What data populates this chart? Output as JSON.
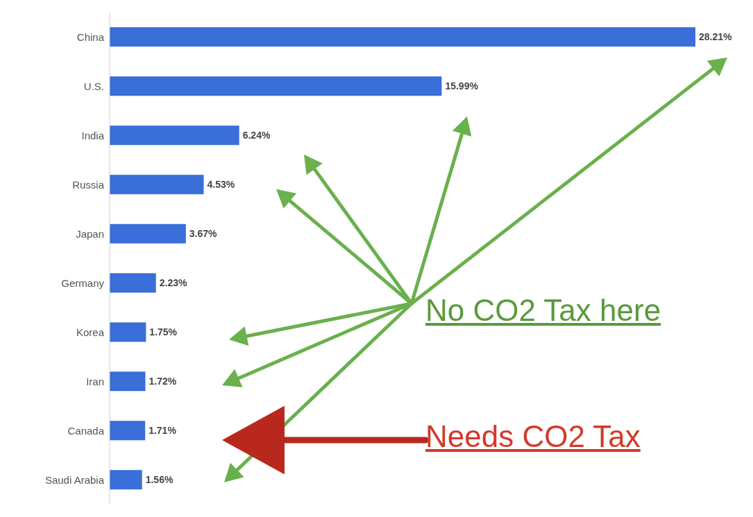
{
  "chart_data": {
    "type": "bar",
    "orientation": "horizontal",
    "categories": [
      "China",
      "U.S.",
      "India",
      "Russia",
      "Japan",
      "Germany",
      "Korea",
      "Iran",
      "Canada",
      "Saudi Arabia"
    ],
    "values": [
      28.21,
      15.99,
      6.24,
      4.53,
      3.67,
      2.23,
      1.75,
      1.72,
      1.71,
      1.56
    ],
    "value_labels": [
      "28.21%",
      "15.99%",
      "6.24%",
      "4.53%",
      "3.67%",
      "2.23%",
      "1.75%",
      "1.72%",
      "1.71%",
      "1.56%"
    ],
    "color": "#3a6ed8",
    "tick_labels": "y",
    "annotations": [
      "No CO2 Tax here",
      "Needs CO2 Tax"
    ]
  }
}
